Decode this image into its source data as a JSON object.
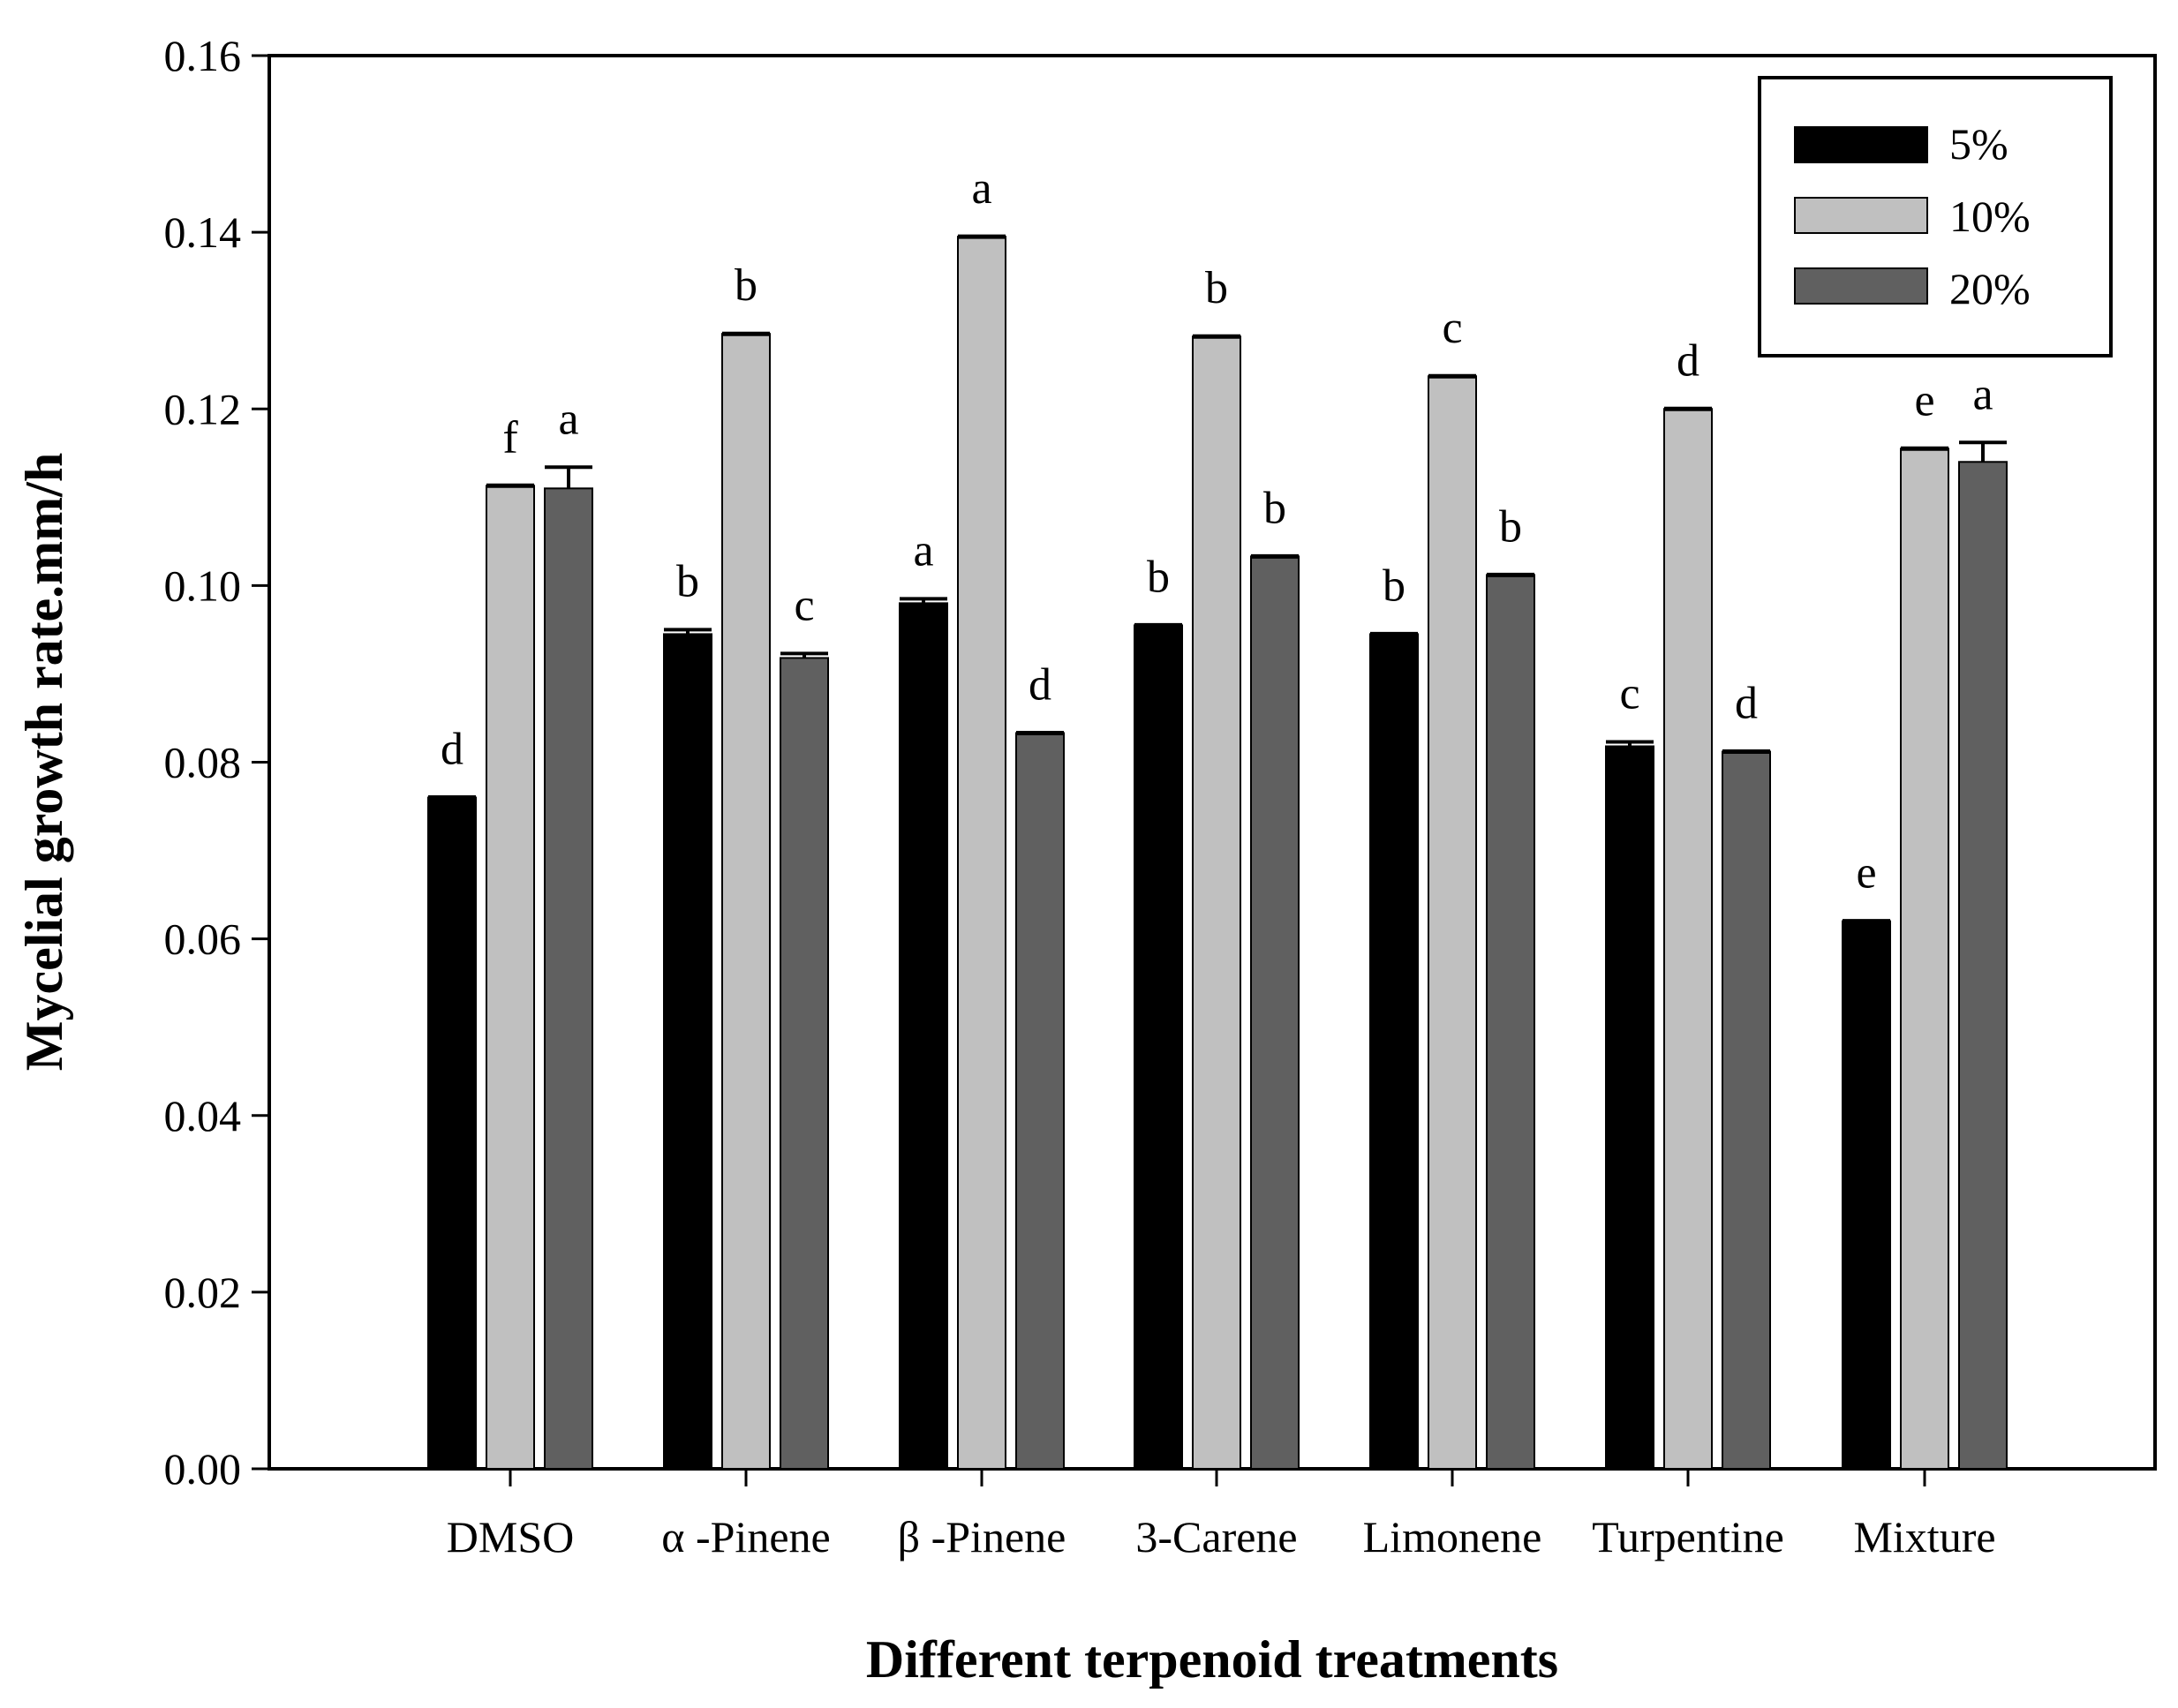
{
  "chart_data": {
    "type": "bar",
    "title": "",
    "xlabel": "Different terpenoid treatments",
    "ylabel": "Mycelial growth rate.mm/h",
    "ylim": [
      0,
      0.16
    ],
    "yticks": [
      "0.00",
      "0.02",
      "0.04",
      "0.06",
      "0.08",
      "0.10",
      "0.12",
      "0.14",
      "0.16"
    ],
    "legend_position": "top-right",
    "categories": [
      "DMSO",
      "α -Pinene",
      "β -Pinene",
      "3-Carene",
      "Limonene",
      "Turpentine",
      "Mixture"
    ],
    "series": [
      {
        "name": "5%",
        "color": "#000000",
        "values": [
          0.076,
          0.0945,
          0.098,
          0.0955,
          0.0945,
          0.0818,
          0.062
        ],
        "errors": [
          0.0,
          0.0005,
          0.0005,
          0.0,
          0.0,
          0.0005,
          0.0
        ],
        "letters": [
          "d",
          "b",
          "a",
          "b",
          "b",
          "c",
          "e"
        ]
      },
      {
        "name": "10%",
        "color": "#c0c0c0",
        "values": [
          0.1113,
          0.1285,
          0.1395,
          0.1282,
          0.1237,
          0.12,
          0.1155
        ],
        "errors": [
          0.0,
          0.0,
          0.0,
          0.0,
          0.0,
          0.0,
          0.0
        ],
        "letters": [
          "f",
          "b",
          "a",
          "b",
          "c",
          "d",
          "e"
        ]
      },
      {
        "name": "20%",
        "color": "#606060",
        "values": [
          0.111,
          0.0918,
          0.0833,
          0.1033,
          0.1012,
          0.0812,
          0.114
        ],
        "errors": [
          0.0024,
          0.0005,
          0.0,
          0.0,
          0.0,
          0.0,
          0.0022
        ],
        "letters": [
          "a",
          "c",
          "d",
          "b",
          "b",
          "d",
          "a"
        ]
      }
    ]
  }
}
